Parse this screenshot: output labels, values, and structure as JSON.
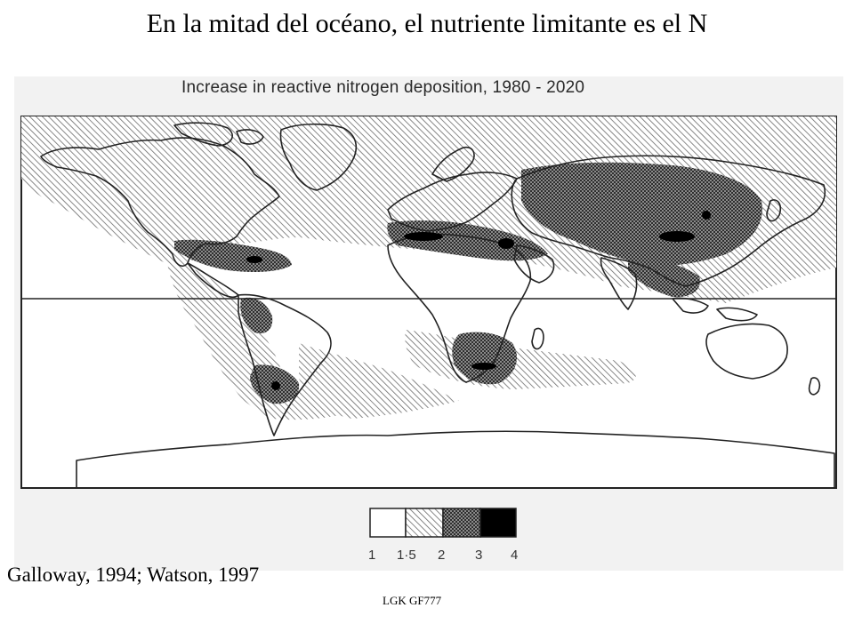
{
  "slide": {
    "title": "En la mitad del océano, el nutriente limitante es el N",
    "citation": "Galloway, 1994; Watson, 1997",
    "footer_code": "LGK GF777"
  },
  "map": {
    "title": "Increase in reactive nitrogen deposition, 1980 - 2020",
    "legend": {
      "labels": [
        "1",
        "1·5",
        "2",
        "3",
        "4"
      ],
      "classes": [
        {
          "from": "1",
          "to": "1·5",
          "fill": "white"
        },
        {
          "from": "1·5",
          "to": "2",
          "fill": "light-hatch"
        },
        {
          "from": "2",
          "to": "3",
          "fill": "dense-hatch"
        },
        {
          "from": "3",
          "to": "4",
          "fill": "black"
        }
      ]
    },
    "colors": {
      "background": "#f2f2f2",
      "land": "#ffffff",
      "outline": "#222222",
      "high": "#000000"
    }
  }
}
